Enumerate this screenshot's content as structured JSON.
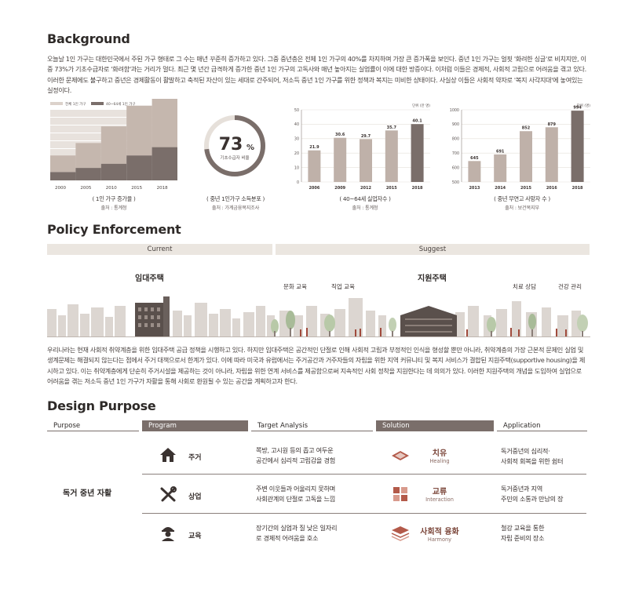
{
  "background": {
    "title": "Background",
    "paragraph": "오늘날 1인 가구는 대한민국에서 주된 가구 형태로 그 수는 매년 꾸준히 증가하고 있다. 그중 중년층은 전체 1인 가구의 40%를 차지하며 가장 큰 증가폭을 보인다. 중년 1인 가구는 얼핏 '화려한 싱글'로 비치지만, 이 중 73%가 기초수급자로 '화려함'과는 거리가 멀다. 최근 몇 년간 급격하게 증가한 중년 1인 가구의 고독사와 매년 높아지는 실업률이 이에 대한 방증이다. 이처럼 이들은 경제적, 사회적 고립으로 어려움을 겪고 있다. 이러한 문제에도 불구하고 중년은 경제활동이 활발하고 축적된 자산이 있는 세대로 간주되어, 저소득 중년 1인 가구를 위한 정책과 복지는 미비한 상태이다. 사실상 이들은 사회적 약자로 '복지 사각지대'에 놓여있는 실정이다."
  },
  "charts": {
    "stacked": {
      "legend_all": "전체 1인 가구",
      "legend_mid": "40~64세 1인 가구",
      "unit": "단위 (%)",
      "caption": "( 1인 가구 증가율 )",
      "source": "출처 : 통계청"
    },
    "donut": {
      "value": "73",
      "unit": "%",
      "label": "기초수급자 비율",
      "caption": "( 중년 1인가구 소득분포 )",
      "source": "출처 : 가계금융복지조사"
    },
    "unemployed": {
      "caption": "( 40~64세 실업자수 )",
      "source": "출처 : 통계청",
      "unit": "단위 (만 명)"
    },
    "lonely": {
      "caption": "( 중년 무연고 사망자 수 )",
      "source": "출처 : 보건복지부",
      "unit": "단위 (명)"
    }
  },
  "chart_data": [
    {
      "type": "bar",
      "stacked": true,
      "categories": [
        "2000",
        "2005",
        "2010",
        "2015",
        "2018"
      ],
      "series": [
        {
          "name": "전체 1인 가구",
          "values": [
            4,
            6,
            9,
            12,
            15
          ]
        },
        {
          "name": "40~64세 1인 가구",
          "values": [
            2,
            3,
            4,
            6,
            8
          ]
        }
      ],
      "ylabel": "단위 (%)"
    },
    {
      "type": "pie",
      "values": [
        73,
        27
      ],
      "title": "기초수급자 비율"
    },
    {
      "type": "bar",
      "categories": [
        "2006",
        "2009",
        "2012",
        "2015",
        "2018"
      ],
      "values": [
        21.9,
        30.6,
        29.7,
        35.7,
        40.1
      ],
      "ylim": [
        0,
        50
      ],
      "yticks": [
        0,
        10,
        20,
        30,
        40,
        50
      ],
      "ylabel": "단위 (만 명)"
    },
    {
      "type": "bar",
      "categories": [
        "2013",
        "2014",
        "2015",
        "2016",
        "2018"
      ],
      "values": [
        645,
        691,
        852,
        879,
        994
      ],
      "ylim": [
        500,
        1000
      ],
      "yticks": [
        500,
        600,
        700,
        800,
        900,
        1000
      ],
      "ylabel": "단위 (명)"
    }
  ],
  "policy": {
    "title": "Policy Enforcement",
    "current": "Current",
    "suggest": "Suggest",
    "current_label": "임대주택",
    "suggest_label": "지원주택",
    "tag_culture": "문화 교육",
    "tag_job": "직업 교육",
    "tag_therapy": "치료 상담",
    "tag_health": "건강 관리",
    "paragraph": "우리나라는 현재 사회적 취약계층을 위한 임대주택 공급 정책을 시행하고 있다. 하지만 임대주택은 공간적인 단절로 인해 사회적 고립과 부정적인 인식을 형성할 뿐만 아니라, 취약계층의 가장 근본적 문제인 실업 및 생계문제는 해결되지 않는다는 점에서 주거 대책으로서 한계가 있다. 이에 따라 미국과 유럽에서는 주거공간과 거주자들의 자립을 위한 지역 커뮤니티 및 복지 서비스가 결합된 지원주택(supportive housing)을 제시하고 있다. 이는 취약계층에게 단순히 주거시설을 제공하는 것이 아니라, 자립을 위한 연계 서비스를 제공함으로써 지속적인 사회 정착을 지원한다는 데 의의가 있다. 이러한 지원주택의 개념을 도입하여 실업으로 어려움을 겪는 저소득 중년 1인 가구가 자활을 통해 사회로 환원될 수 있는 공간을 계획하고자 한다."
  },
  "design": {
    "title": "Design Purpose",
    "headers": {
      "purpose": "Purpose",
      "program": "Program",
      "target": "Target Analysis",
      "solution": "Solution",
      "application": "Application"
    },
    "purpose": "독거 중년 자활",
    "rows": [
      {
        "icon": "house-icon",
        "program": "주거",
        "target_1": "쪽방, 고시원 등의 좁고 여두운",
        "target_2": "공간에서 심리적 고립감을 경험",
        "solution_k": "치유",
        "solution_e": "Healing",
        "app_1": "독거중년의 심리적·",
        "app_2": "사회적 회복을 위한 쉼터"
      },
      {
        "icon": "tools-icon",
        "program": "상업",
        "target_1": "주변 이웃들과 어울리지 못하며",
        "target_2": "사회관계의 단절로 고독을 느낌",
        "solution_k": "교류",
        "solution_e": "Interaction",
        "app_1": "독거중년과 지역",
        "app_2": "주민의 소통과 만남의 장"
      },
      {
        "icon": "worker-icon",
        "program": "교육",
        "target_1": "장기간의 실업과 질 낮은 일자리",
        "target_2": "로 경제적 어려움을 호소",
        "solution_k": "사회적 융화",
        "solution_e": "Harmony",
        "app_1": "철강 교육을 통한",
        "app_2": "자립 준비의 장소"
      }
    ]
  },
  "colors": {
    "dark_bar": "#7a6e6a",
    "mid_bar": "#bfb1a9",
    "light_bar": "#dcd2cb",
    "accent": "#a04a3c",
    "bg_band": "#ebe6e0"
  }
}
